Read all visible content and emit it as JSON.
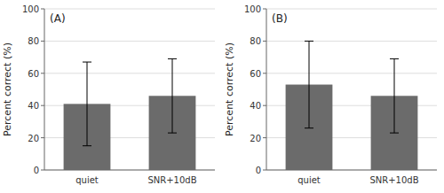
{
  "chart_data": [
    {
      "type": "bar",
      "title": "(A)",
      "ylabel": "Percent correct (%)",
      "categories": [
        "quiet",
        "SNR+10dB"
      ],
      "values": [
        41,
        46
      ],
      "errors": [
        26,
        23
      ],
      "color": "#6b6b6b",
      "ylim": [
        0,
        100
      ],
      "yticks": [
        0,
        20,
        40,
        60,
        80,
        100
      ],
      "grid": true
    },
    {
      "type": "bar",
      "title": "(B)",
      "ylabel": "Percent correct (%)",
      "categories": [
        "quiet",
        "SNR+10dB"
      ],
      "values": [
        53,
        46
      ],
      "errors": [
        27,
        23
      ],
      "color": "#6b6b6b",
      "ylim": [
        0,
        100
      ],
      "yticks": [
        0,
        20,
        40,
        60,
        80,
        100
      ],
      "grid": true
    }
  ]
}
